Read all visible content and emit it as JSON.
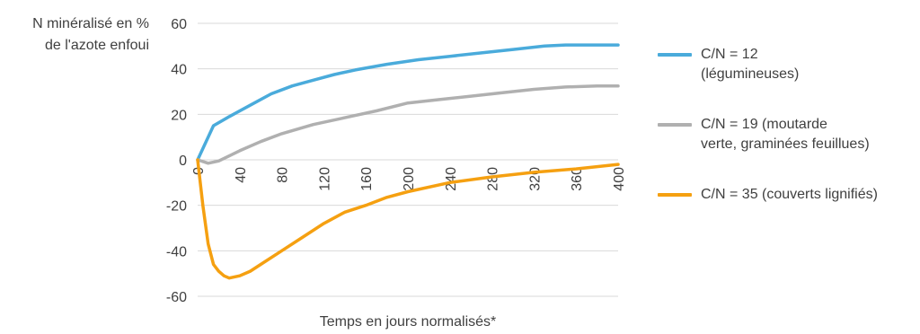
{
  "chart_data": {
    "type": "line",
    "ylabel_lines": [
      "N minéralisé en %",
      "de l'azote enfoui"
    ],
    "xlabel": "Temps en jours normalisés*",
    "xlim": [
      0,
      400
    ],
    "ylim": [
      -60,
      60
    ],
    "x_ticks": [
      0,
      40,
      80,
      120,
      160,
      200,
      240,
      280,
      320,
      360,
      400
    ],
    "x_tick_labels": [
      "0",
      "40",
      "80",
      "120",
      "160",
      "200",
      "240",
      "280",
      "320",
      "360",
      "400"
    ],
    "y_ticks": [
      60,
      40,
      20,
      0,
      -20,
      -40,
      -60
    ],
    "y_tick_labels": [
      "60",
      "40",
      "20",
      "0",
      "-20",
      "-40",
      "-60"
    ],
    "grid": true,
    "legend_position": "right",
    "series": [
      {
        "name_lines": [
          "C/N = 12",
          "(légumineuses)"
        ],
        "color": "#4aabdb",
        "x": [
          0,
          15,
          30,
          50,
          70,
          90,
          110,
          130,
          150,
          180,
          210,
          240,
          270,
          300,
          330,
          350,
          380,
          400
        ],
        "y": [
          0,
          15,
          19,
          24,
          29,
          32.5,
          35,
          37.5,
          39.5,
          42,
          44,
          45.5,
          47,
          48.5,
          50,
          50.5,
          50.5,
          50.5
        ]
      },
      {
        "name_lines": [
          "C/N = 19 (moutarde",
          "verte, graminées feuillues)"
        ],
        "color": "#b0b0b0",
        "x": [
          0,
          10,
          20,
          40,
          60,
          80,
          110,
          140,
          170,
          200,
          230,
          260,
          290,
          320,
          350,
          380,
          400
        ],
        "y": [
          0,
          -1.5,
          -0.5,
          4,
          8,
          11.5,
          15.5,
          18.5,
          21.5,
          25,
          26.5,
          28,
          29.5,
          31,
          32,
          32.5,
          32.5
        ]
      },
      {
        "name_lines": [
          "C/N = 35 (couverts lignifiés)"
        ],
        "color": "#f5a011",
        "x": [
          0,
          5,
          10,
          15,
          20,
          25,
          30,
          40,
          50,
          60,
          80,
          100,
          120,
          140,
          160,
          180,
          200,
          240,
          280,
          320,
          360,
          400
        ],
        "y": [
          0,
          -20,
          -37,
          -46,
          -49,
          -51,
          -52,
          -51,
          -49,
          -46,
          -40,
          -34,
          -28,
          -23,
          -20,
          -16.5,
          -14,
          -10,
          -7.5,
          -5.5,
          -4,
          -2
        ]
      }
    ]
  }
}
